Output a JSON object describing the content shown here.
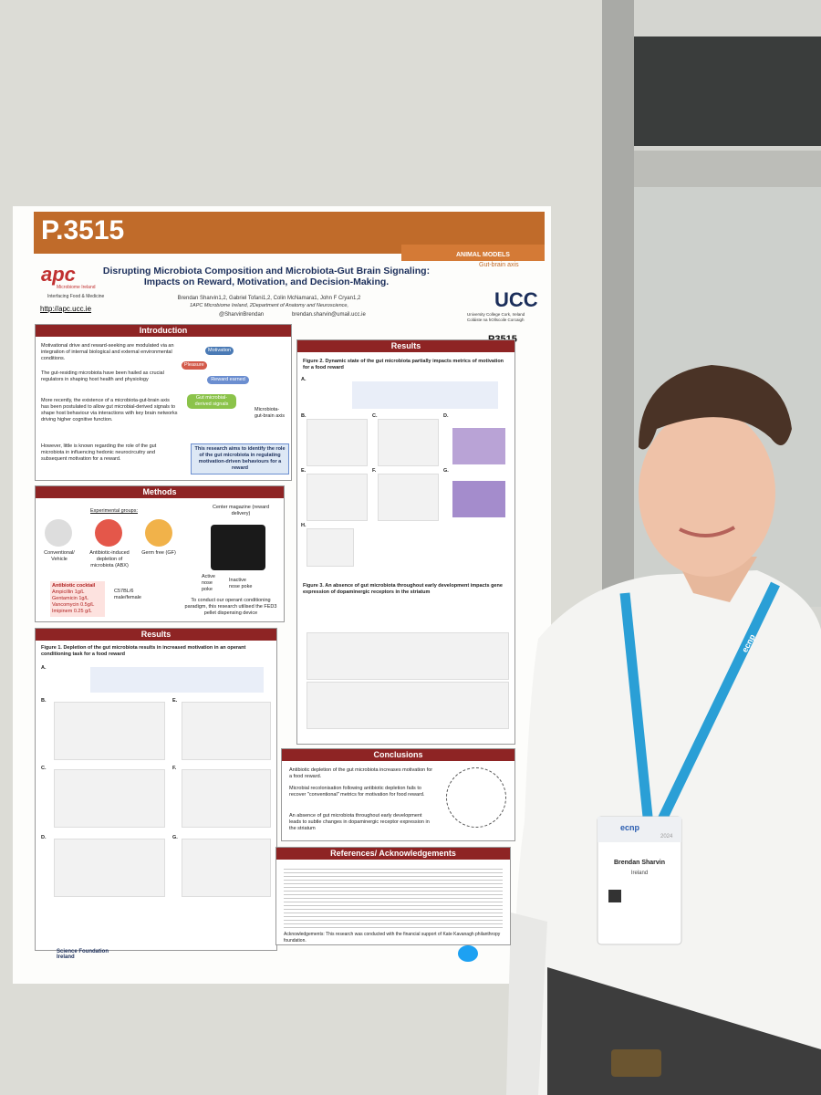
{
  "poster": {
    "number": "P.3515",
    "category": "ANIMAL MODELS",
    "subcategory": "Gut-brain axis",
    "logo_left": {
      "name": "apc",
      "org": "Microbiome Ireland",
      "tagline": "Interfacing Food & Medicine",
      "url": "http://apc.ucc.ie"
    },
    "logo_right": {
      "name": "UCC",
      "line1": "University College Cork, Ireland",
      "line2": "Coláiste na hOllscoile Corcaigh"
    },
    "title": "Disrupting Microbiota Composition and Microbiota-Gut Brain Signaling: Impacts on Reward, Motivation, and Decision-Making.",
    "authors": "Brendan Sharvin1,2, Gabriel Tofani1,2, Colin McNamara1, John F Cryan1,2",
    "affiliation": "1APC Microbiome Ireland, 2Department of Anatomy and Neuroscience,",
    "twitter": "@SharvinBrendan",
    "email": "brendan.sharvin@umail.ucc.ie",
    "code": "P3515",
    "introduction": {
      "title": "Introduction",
      "bullets": [
        "Motivational drive and reward-seeking are modulated via an integration of internal biological and external environmental conditions.",
        "The gut-residing microbiota have been hailed as crucial regulators in shaping host health and physiology",
        "More recently, the existence of a microbiota-gut-brain axis has been postulated to allow gut microbial-derived signals to shape host behaviour via interactions with key brain networks driving higher cognitive function.",
        "However, little is known regarding the role of the gut microbiota in influencing hedonic neurocircuitry and subsequent motivation for a reward."
      ],
      "diagram": [
        "Motivation",
        "Pleasure",
        "Reward earned",
        "Gut microbial-derived signals",
        "Microbiota-gut-brain axis"
      ],
      "aim": "This research aims to identify the role of the gut microbiota in regulating motivation-driven behaviours for a reward"
    },
    "methods": {
      "title": "Methods",
      "groups_title": "Experimental groups:",
      "groups": [
        "Conventional/ Vehicle",
        "Antibiotic-induced depletion of microbiota (ABX)",
        "Germ free (GF)"
      ],
      "cocktail": [
        "Antibiotic cocktail",
        "Ampicillin 1g/L",
        "Gentamicin 1g/L",
        "Vancomycin 0.5g/L",
        "Imipinem 0.25 g/L"
      ],
      "strain": "C57BL/6 male/female",
      "magazine": "Center magazine (reward delivery)",
      "active": "Active nose poke",
      "inactive": "Inactive nose poke",
      "paradigm": "To conduct our operant conditioning paradigm, this research utilised the FED3 pellet dispensing device"
    },
    "results_left": {
      "title": "Results",
      "figure": "Figure 1. Depletion of the gut microbiota results in increased motivation in an operant conditioning task for a food reward",
      "panels": [
        "A.",
        "B.",
        "C.",
        "D.",
        "E.",
        "F.",
        "G."
      ]
    },
    "results_right": {
      "title": "Results",
      "figure2": "Figure 2. Dynamic state of the gut microbiota partially impacts metrics of motivation for a food reward",
      "figure3": "Figure 3. An absence of gut microbiota throughout early development impacts gene expression of dopaminergic receptors in the striatum",
      "panels": [
        "A.",
        "B.",
        "C.",
        "D.",
        "E.",
        "F.",
        "G.",
        "H."
      ]
    },
    "conclusions": {
      "title": "Conclusions",
      "bullets": [
        "Antibiotic depletion of the gut microbiota increases motivation for a food reward.",
        "Microbial recolonisation following antibiotic depletion fails to recover \"conventional\" metrics for motivation for food reward.",
        "An absence of gut microbiota throughout early development leads to subtle changes in dopaminergic receptor expression in the striatum"
      ]
    },
    "references": {
      "title": "References/ Acknowledgements",
      "acknowledgement": "Acknowledgements: This research was conducted with the financial support of Kate Kavanagh philanthropy foundation."
    },
    "funder": "Science Foundation Ireland"
  },
  "badge": {
    "org": "ecnp",
    "year": "2024",
    "name": "Brendan Sharvin",
    "country": "Ireland",
    "lanyard": "ecnp"
  }
}
